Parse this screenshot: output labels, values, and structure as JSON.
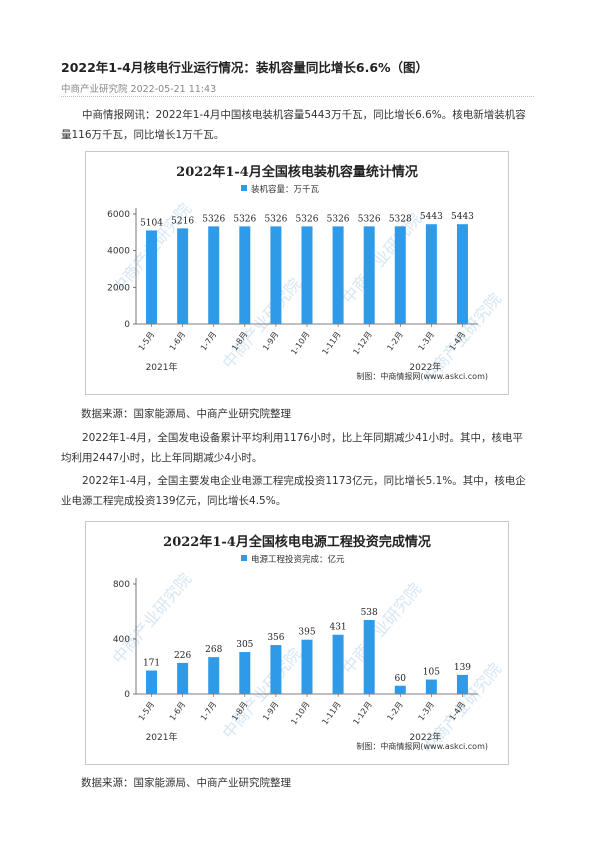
{
  "article": {
    "title": "2022年1-4月核电行业运行情况：装机容量同比增长6.6%（图）",
    "meta": "中商产业研究院 2022-05-21 11:43",
    "para1_line1": "中商情报网讯：2022年1-4月中国核电装机容量5443万千瓦，同比增长6.6%。核电新增装机容",
    "para1_line2": "量116万千瓦，同比增长1万千瓦。",
    "source1": "数据来源：国家能源局、中商产业研究院整理",
    "para2_line1": "2022年1-4月，全国发电设备累计平均利用1176小时，比上年同期减少41小时。其中，核电平",
    "para2_line2": "均利用2447小时，比上年同期减少4小时。",
    "para3_line1": "2022年1-4月，全国主要发电企业电源工程完成投资1173亿元，同比增长5.1%。其中，核电企",
    "para3_line2": "业电源工程完成投资139亿元，同比增长4.5%。",
    "source2": "数据来源：国家能源局、中商产业研究院整理"
  },
  "watermark": "中商产业研究院",
  "colors": {
    "bar": "#2e9ae8",
    "title": "#222222",
    "axis": "#555555"
  },
  "chart_data": [
    {
      "type": "bar",
      "title": "2022年1-4月全国核电装机容量统计情况",
      "legend": "装机容量：万千瓦",
      "categories": [
        "1-5月",
        "1-6月",
        "1-7月",
        "1-8月",
        "1-9月",
        "1-10月",
        "1-11月",
        "1-12月",
        "1-2月",
        "1-3月",
        "1-4月"
      ],
      "values": [
        5104,
        5216,
        5326,
        5326,
        5326,
        5326,
        5326,
        5326,
        5328,
        5443,
        5443
      ],
      "y_ticks": [
        "0",
        "2000",
        "4000",
        "6000"
      ],
      "ylim": [
        0,
        6000
      ],
      "groups": [
        {
          "label": "2021年",
          "start": 0,
          "end": 7
        },
        {
          "label": "2022年",
          "start": 8,
          "end": 10
        }
      ],
      "credit": "制图：中商情报网(www.askci.com)",
      "grid": false,
      "legend_position": "top-center"
    },
    {
      "type": "bar",
      "title": "2022年1-4月全国核电电源工程投资完成情况",
      "legend": "电源工程投资完成：亿元",
      "categories": [
        "1-5月",
        "1-6月",
        "1-7月",
        "1-8月",
        "1-9月",
        "1-10月",
        "1-11月",
        "1-12月",
        "1-2月",
        "1-3月",
        "1-4月"
      ],
      "values": [
        171,
        226,
        268,
        305,
        356,
        395,
        431,
        538,
        60,
        105,
        139
      ],
      "y_ticks": [
        "0",
        "400",
        "800"
      ],
      "ylim": [
        0,
        800
      ],
      "groups": [
        {
          "label": "2021年",
          "start": 0,
          "end": 7
        },
        {
          "label": "2022年",
          "start": 8,
          "end": 10
        }
      ],
      "credit": "制图：中商情报网(www.askci.com)",
      "grid": false,
      "legend_position": "top-center"
    }
  ]
}
